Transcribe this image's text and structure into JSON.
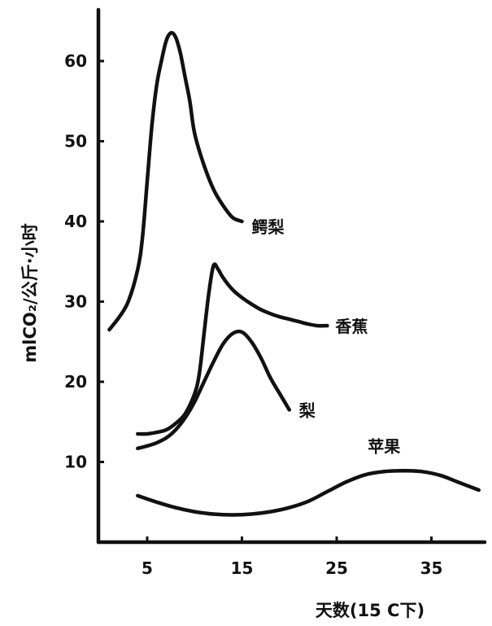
{
  "chart_data": {
    "type": "line",
    "ylabel": "mlCO₂/公斤·小时",
    "xlabel": "天数(15 C下)",
    "xlim": [
      -2,
      40
    ],
    "ylim": [
      0,
      65
    ],
    "xticks": [
      5,
      15,
      25,
      35
    ],
    "yticks": [
      10,
      20,
      30,
      40,
      50,
      60
    ],
    "grid": false,
    "series": [
      {
        "name": "鳄梨",
        "x": [
          1,
          2,
          3,
          4,
          4.5,
          5,
          5.5,
          6,
          6.5,
          7,
          7.5,
          8,
          8.5,
          9,
          9.5,
          10,
          11,
          12,
          13,
          14,
          15
        ],
        "y": [
          26.5,
          28,
          30,
          34,
          38,
          45,
          52,
          57,
          60,
          62.5,
          63.5,
          63,
          61,
          58,
          55,
          51,
          47,
          44,
          42,
          40.5,
          40
        ]
      },
      {
        "name": "香蕉",
        "x": [
          4,
          5,
          6,
          7,
          8,
          9,
          10,
          10.5,
          11,
          11.5,
          12,
          12.5,
          13,
          14,
          15,
          16,
          17,
          18,
          19,
          20,
          21,
          22,
          23,
          24
        ],
        "y": [
          13.5,
          13.5,
          13.7,
          14,
          14.8,
          16,
          18.5,
          21,
          26,
          31,
          34.5,
          34,
          33,
          31.5,
          30.5,
          29.7,
          29,
          28.5,
          28.1,
          27.8,
          27.5,
          27.2,
          27,
          27
        ]
      },
      {
        "name": "梨",
        "x": [
          4,
          5,
          6,
          7,
          8,
          9,
          10,
          11,
          12,
          13,
          14,
          15,
          16,
          17,
          18,
          19,
          20
        ],
        "y": [
          11.7,
          12,
          12.4,
          13,
          14,
          15.5,
          17.5,
          20,
          22.5,
          24.7,
          26,
          26.2,
          25,
          23,
          20.5,
          18.5,
          16.5
        ]
      },
      {
        "name": "苹果",
        "x": [
          4,
          6,
          8,
          10,
          12,
          14,
          16,
          18,
          20,
          22,
          24,
          26,
          28,
          30,
          32,
          34,
          36,
          38,
          40
        ],
        "y": [
          5.8,
          5,
          4.3,
          3.8,
          3.5,
          3.4,
          3.5,
          3.8,
          4.3,
          5.1,
          6.3,
          7.5,
          8.4,
          8.8,
          8.9,
          8.8,
          8.3,
          7.4,
          6.5
        ]
      }
    ]
  }
}
